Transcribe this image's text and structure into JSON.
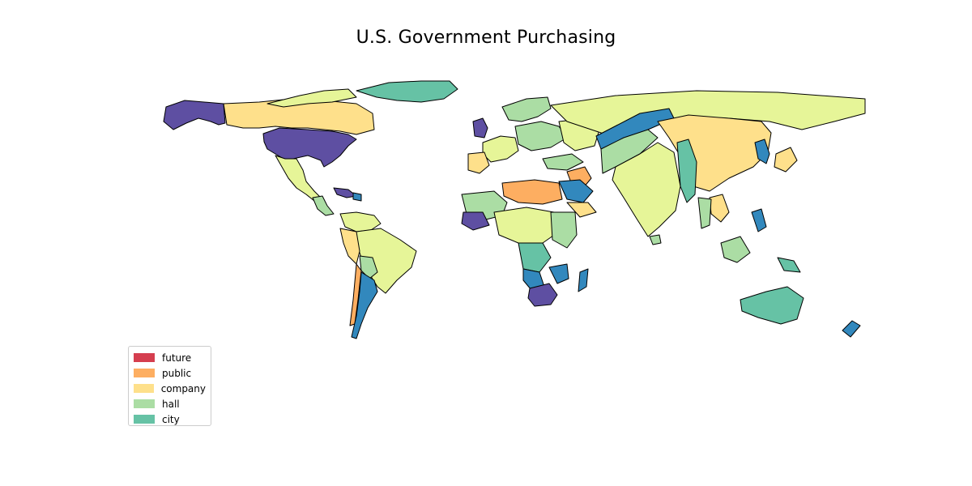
{
  "title": "U.S. Government Purchasing",
  "legend": {
    "items": [
      {
        "label": "future",
        "color": "#d53e4f"
      },
      {
        "label": "public",
        "color": "#fdae61"
      },
      {
        "label": "company",
        "color": "#fee08b"
      },
      {
        "label": "hall",
        "color": "#abdda4"
      },
      {
        "label": "city",
        "color": "#66c2a5"
      }
    ]
  },
  "map_colors": {
    "purple": "#5e4fa2",
    "blue": "#3288bd",
    "teal": "#66c2a5",
    "green": "#abdda4",
    "pale_green": "#e6f598",
    "yellow": "#fee08b",
    "orange": "#fdae61",
    "red": "#d53e4f"
  }
}
